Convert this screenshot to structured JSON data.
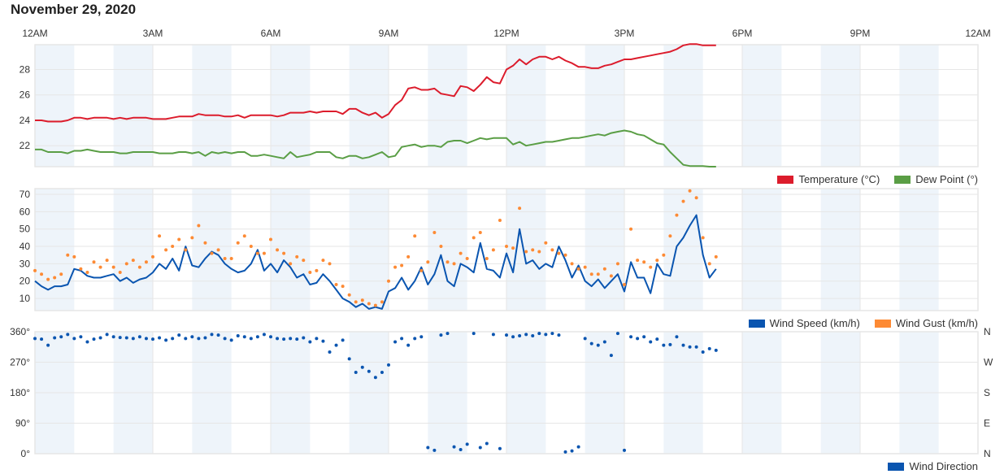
{
  "title": "November 29, 2020",
  "colors": {
    "temperature": "#dc1c2c",
    "dew_point": "#5a9e45",
    "wind_speed": "#0a55b0",
    "wind_gust": "#fd8a34",
    "wind_direction": "#0a55b0",
    "shade": "#eef4fa",
    "grid": "#e6e6e6"
  },
  "x_axis": {
    "labels": [
      "12AM",
      "3AM",
      "6AM",
      "9AM",
      "12PM",
      "3PM",
      "6PM",
      "9PM",
      "12AM"
    ],
    "label_hours": [
      0,
      3,
      6,
      9,
      12,
      15,
      18,
      21,
      24
    ],
    "range_hours": [
      0,
      24
    ]
  },
  "legends": {
    "temp": [
      {
        "label": "Temperature (°C)",
        "color": "#dc1c2c"
      },
      {
        "label": "Dew Point (°)",
        "color": "#5a9e45"
      }
    ],
    "wind": [
      {
        "label": "Wind Speed (km/h)",
        "color": "#0a55b0"
      },
      {
        "label": "Wind Gust (km/h)",
        "color": "#fd8a34"
      }
    ],
    "dir": [
      {
        "label": "Wind Direction",
        "color": "#0a55b0"
      }
    ]
  },
  "chart_data": [
    {
      "type": "line",
      "title": "Temperature / Dew Point",
      "start_hour": 0,
      "interval_minutes": 10,
      "ylim": [
        20.35,
        29.95
      ],
      "yticks": [
        22,
        24,
        26,
        28
      ],
      "ytick_labels": [
        "22",
        "24",
        "26",
        "28"
      ],
      "series": [
        {
          "name": "Temperature (°C)",
          "values": [
            24.0,
            24.0,
            23.9,
            23.9,
            23.9,
            24.0,
            24.2,
            24.2,
            24.1,
            24.2,
            24.2,
            24.2,
            24.1,
            24.2,
            24.1,
            24.2,
            24.2,
            24.2,
            24.1,
            24.1,
            24.1,
            24.2,
            24.3,
            24.3,
            24.3,
            24.5,
            24.4,
            24.4,
            24.4,
            24.3,
            24.3,
            24.4,
            24.2,
            24.4,
            24.4,
            24.4,
            24.4,
            24.3,
            24.4,
            24.6,
            24.6,
            24.6,
            24.7,
            24.6,
            24.7,
            24.7,
            24.7,
            24.5,
            24.9,
            24.9,
            24.6,
            24.4,
            24.6,
            24.2,
            24.5,
            25.2,
            25.6,
            26.5,
            26.6,
            26.4,
            26.4,
            26.5,
            26.1,
            26.0,
            25.9,
            26.7,
            26.6,
            26.3,
            26.8,
            27.4,
            27.0,
            26.9,
            28.0,
            28.3,
            28.8,
            28.4,
            28.8,
            29.0,
            29.0,
            28.8,
            29.0,
            28.7,
            28.5,
            28.2,
            28.2,
            28.1,
            28.1,
            28.3,
            28.4,
            28.6,
            28.8,
            28.8,
            28.9,
            29.0,
            29.1,
            29.2,
            29.3,
            29.4,
            29.6,
            29.9,
            30.0,
            30.0,
            29.9,
            29.9,
            29.9
          ]
        },
        {
          "name": "Dew Point (°)",
          "values": [
            21.7,
            21.7,
            21.5,
            21.5,
            21.5,
            21.4,
            21.6,
            21.6,
            21.7,
            21.6,
            21.5,
            21.5,
            21.5,
            21.4,
            21.4,
            21.5,
            21.5,
            21.5,
            21.5,
            21.4,
            21.4,
            21.4,
            21.5,
            21.5,
            21.4,
            21.5,
            21.2,
            21.5,
            21.4,
            21.5,
            21.4,
            21.5,
            21.5,
            21.2,
            21.2,
            21.3,
            21.2,
            21.1,
            21.0,
            21.5,
            21.1,
            21.2,
            21.3,
            21.5,
            21.5,
            21.5,
            21.1,
            21.0,
            21.2,
            21.2,
            21.0,
            21.1,
            21.3,
            21.5,
            21.1,
            21.2,
            21.9,
            22.0,
            22.1,
            21.9,
            22.0,
            22.0,
            21.9,
            22.3,
            22.4,
            22.4,
            22.2,
            22.4,
            22.6,
            22.5,
            22.6,
            22.6,
            22.6,
            22.1,
            22.3,
            22.0,
            22.1,
            22.2,
            22.3,
            22.3,
            22.4,
            22.5,
            22.6,
            22.6,
            22.7,
            22.8,
            22.9,
            22.8,
            23.0,
            23.1,
            23.2,
            23.1,
            22.9,
            22.8,
            22.5,
            22.2,
            22.1,
            21.5,
            21.0,
            20.5,
            20.4,
            20.4,
            20.4,
            20.35,
            20.35
          ]
        }
      ]
    },
    {
      "type": "line",
      "title": "Wind Speed / Gust",
      "start_hour": 0,
      "interval_minutes": 10,
      "ylim": [
        3,
        73.3
      ],
      "yticks": [
        10,
        20,
        30,
        40,
        50,
        60,
        70
      ],
      "ytick_labels": [
        "10",
        "20",
        "30",
        "40",
        "50",
        "60",
        "70"
      ],
      "series": [
        {
          "name": "Wind Speed (km/h)",
          "style": "line",
          "values": [
            20,
            17,
            15,
            17,
            17,
            18,
            27,
            26,
            23,
            22,
            22,
            23,
            24,
            20,
            22,
            19,
            21,
            22,
            25,
            30,
            27,
            33,
            26,
            40,
            29,
            28,
            33,
            37,
            35,
            30,
            27,
            25,
            26,
            30,
            38,
            26,
            30,
            25,
            32,
            28,
            22,
            24,
            18,
            19,
            24,
            20,
            15,
            10,
            8,
            5,
            7,
            4,
            5,
            4,
            14,
            16,
            22,
            15,
            20,
            28,
            18,
            24,
            35,
            20,
            17,
            30,
            28,
            25,
            42,
            27,
            26,
            22,
            36,
            25,
            50,
            30,
            32,
            27,
            30,
            28,
            40,
            32,
            22,
            29,
            20,
            17,
            21,
            16,
            20,
            24,
            14,
            31,
            22,
            22,
            13,
            30,
            24,
            23,
            40,
            45,
            52,
            58,
            35,
            22,
            27
          ]
        },
        {
          "name": "Wind Gust (km/h)",
          "style": "points",
          "values": [
            26,
            24,
            21,
            22,
            24,
            35,
            34,
            27,
            25,
            31,
            28,
            32,
            28,
            25,
            30,
            32,
            28,
            31,
            34,
            46,
            38,
            40,
            44,
            38,
            45,
            52,
            42,
            36,
            38,
            33,
            33,
            42,
            46,
            40,
            36,
            36,
            44,
            38,
            36,
            30,
            34,
            32,
            25,
            26,
            32,
            30,
            18,
            17,
            12,
            8,
            9,
            7,
            6,
            8,
            20,
            28,
            29,
            34,
            46,
            26,
            31,
            48,
            40,
            31,
            30,
            36,
            33,
            45,
            48,
            33,
            38,
            55,
            40,
            39,
            62,
            37,
            38,
            37,
            42,
            38,
            36,
            35,
            30,
            27,
            28,
            24,
            24,
            27,
            23,
            30,
            18,
            50,
            32,
            31,
            28,
            32,
            35,
            46,
            58,
            66,
            72,
            68,
            45,
            30,
            34
          ]
        }
      ]
    },
    {
      "type": "scatter",
      "title": "Wind Direction",
      "start_hour": 0,
      "interval_minutes": 10,
      "ylim": [
        0,
        360
      ],
      "yticks": [
        0,
        90,
        180,
        270,
        360
      ],
      "ytick_labels": [
        "0°",
        "90°",
        "180°",
        "270°",
        "360°"
      ],
      "right_tick_labels": [
        "N",
        "E",
        "S",
        "W",
        "N"
      ],
      "series": [
        {
          "name": "Wind Direction",
          "values": [
            340,
            338,
            320,
            342,
            345,
            352,
            340,
            345,
            330,
            338,
            342,
            352,
            345,
            343,
            342,
            340,
            345,
            340,
            338,
            342,
            335,
            340,
            350,
            340,
            345,
            340,
            342,
            352,
            350,
            340,
            335,
            348,
            345,
            340,
            345,
            352,
            345,
            340,
            338,
            340,
            338,
            342,
            330,
            340,
            332,
            300,
            320,
            335,
            280,
            240,
            255,
            243,
            225,
            240,
            262,
            330,
            340,
            320,
            340,
            345,
            18,
            10,
            350,
            355,
            20,
            12,
            28,
            355,
            18,
            30,
            352,
            15,
            350,
            345,
            348,
            352,
            348,
            355,
            352,
            355,
            350,
            5,
            8,
            20,
            340,
            325,
            320,
            330,
            290,
            355,
            10,
            345,
            340,
            345,
            330,
            338,
            320,
            322,
            345,
            320,
            315,
            315,
            300,
            310,
            305
          ]
        }
      ]
    }
  ]
}
